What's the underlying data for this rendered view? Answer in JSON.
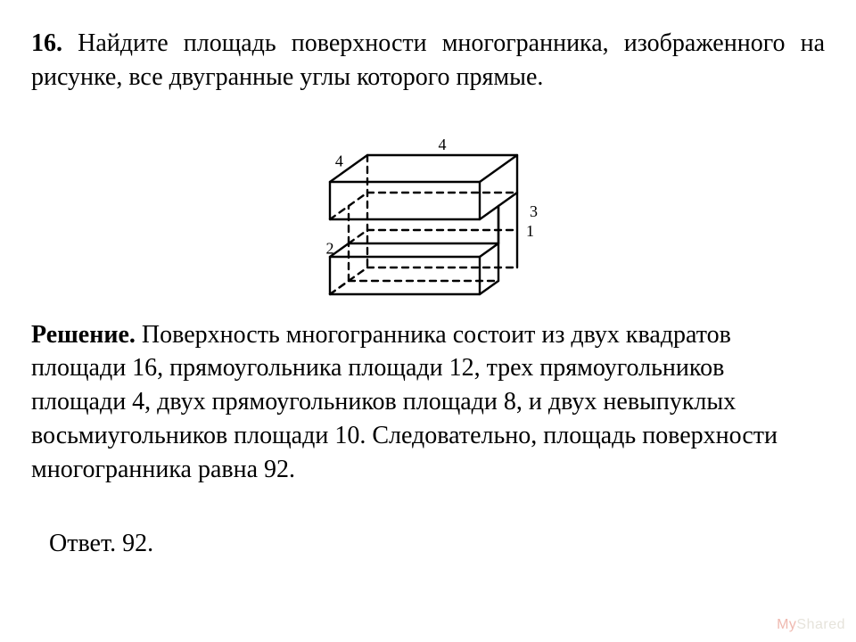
{
  "problem": {
    "number": "16.",
    "text": "Найдите площадь поверхности многогранника, изображенного на рисунке, все двугранные углы которого прямые."
  },
  "figure": {
    "labels": {
      "top_depth": "4",
      "top_width": "4",
      "right_height": "3",
      "notch_height": "1",
      "bottom_depth": "2"
    },
    "style": {
      "stroke": "#000000",
      "stroke_width": 2.4,
      "dash": "7 6",
      "label_fontsize": 18
    }
  },
  "solution": {
    "label": "Решение.",
    "text": "Поверхность многогранника состоит из двух квадратов площади 16, прямоугольника площади 12, трех прямоугольников площади 4, двух прямоугольников площади 8, и двух невыпуклых восьмиугольников площади 10. Следовательно, площадь поверхности многогранника равна 92."
  },
  "answer": {
    "text": "Ответ. 92."
  },
  "watermark": {
    "prefix": "My",
    "rest": "Shared"
  }
}
